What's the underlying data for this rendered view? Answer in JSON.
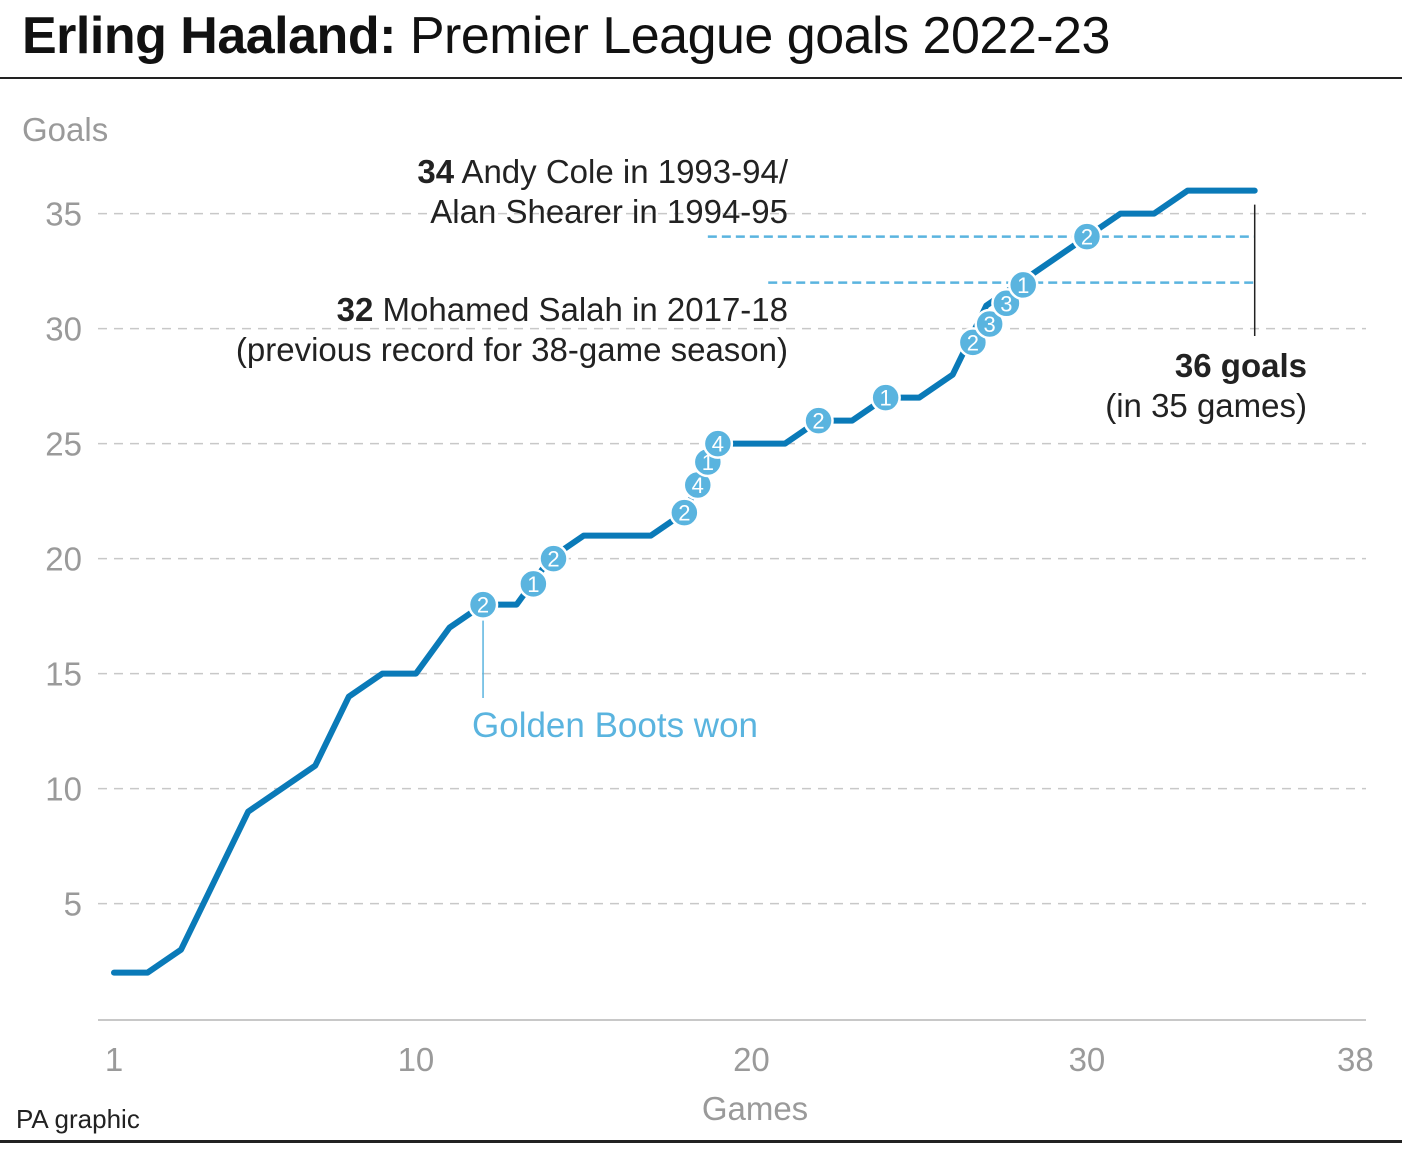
{
  "title": {
    "bold": "Erling Haaland:",
    "rest": "Premier League goals 2022-23"
  },
  "source": "PA graphic",
  "annotations": {
    "cole_shearer": {
      "value": "34",
      "line1": "Andy Cole in 1993-94/",
      "line2": "Alan Shearer in 1994-95"
    },
    "salah": {
      "value": "32",
      "line1": "Mohamed Salah in 2017-18",
      "line2": "(previous record for 38-game season)"
    },
    "haaland_total": {
      "line1": "36 goals",
      "line2": "(in 35 games)"
    },
    "golden_boots": "Golden Boots won"
  },
  "colors": {
    "line": "#0a7ab8",
    "marker": "#5ab4df",
    "grid": "#c8c8c8",
    "axis_text": "#9a9a9a",
    "text": "#222222"
  },
  "chart_data": {
    "type": "line",
    "xlabel": "Games",
    "ylabel": "Goals",
    "xlim": [
      1,
      38
    ],
    "ylim": [
      0,
      37
    ],
    "x_ticks": [
      1,
      10,
      20,
      30,
      38
    ],
    "y_ticks": [
      5,
      10,
      15,
      20,
      25,
      30,
      35
    ],
    "grid": "horizontal dashed",
    "series": [
      {
        "x": [
          1,
          2,
          3,
          4,
          5,
          6,
          7,
          8,
          9,
          10,
          11,
          12,
          13,
          14,
          15,
          16,
          17,
          18,
          19,
          20,
          21,
          22,
          23,
          24,
          25,
          26,
          27,
          28,
          29,
          30,
          31,
          32,
          33,
          34,
          35
        ],
        "y": [
          2,
          2,
          3,
          6,
          9,
          10,
          11,
          14,
          15,
          15,
          17,
          18,
          18,
          20,
          21,
          21,
          21,
          22,
          25,
          25,
          25,
          26,
          26,
          27,
          27,
          28,
          31,
          32,
          33,
          34,
          35,
          35,
          36,
          36,
          36
        ]
      }
    ],
    "reference_lines": [
      {
        "value": 34,
        "label": "Andy Cole in 1993-94/ Alan Shearer in 1994-95"
      },
      {
        "value": 32,
        "label": "Mohamed Salah in 2017-18 (previous record for 38-game season)"
      }
    ],
    "golden_boot_markers": [
      {
        "x": 12,
        "y": 18,
        "label": "2"
      },
      {
        "x": 13.5,
        "y": 18.9,
        "label": "1"
      },
      {
        "x": 14.1,
        "y": 20,
        "label": "2"
      },
      {
        "x": 18,
        "y": 22,
        "label": "2"
      },
      {
        "x": 18.4,
        "y": 23.2,
        "label": "4"
      },
      {
        "x": 18.7,
        "y": 24.2,
        "label": "1"
      },
      {
        "x": 19,
        "y": 25,
        "label": "4"
      },
      {
        "x": 22,
        "y": 26,
        "label": "2"
      },
      {
        "x": 24,
        "y": 27,
        "label": "1"
      },
      {
        "x": 26.6,
        "y": 29.4,
        "label": "2"
      },
      {
        "x": 27.1,
        "y": 30.2,
        "label": "3"
      },
      {
        "x": 27.6,
        "y": 31.1,
        "label": "3"
      },
      {
        "x": 28.1,
        "y": 31.9,
        "label": "1"
      },
      {
        "x": 30,
        "y": 34,
        "label": "2"
      }
    ]
  }
}
